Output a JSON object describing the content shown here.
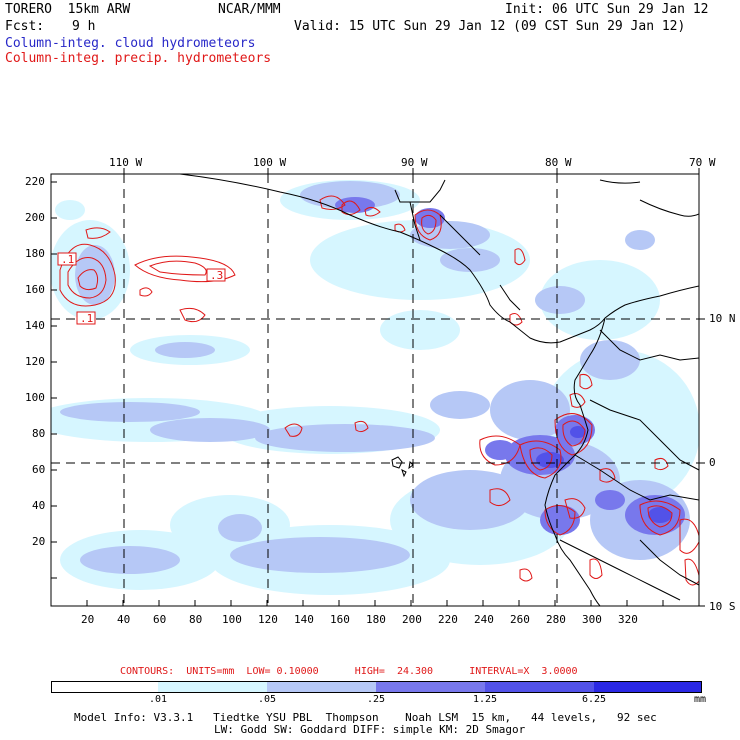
{
  "header": {
    "model": "TORERO  15km ARW",
    "org": "NCAR/MMM",
    "init": "Init: 06 UTC Sun 29 Jan 12",
    "fcst_label": "Fcst:",
    "fcst_value": "9 h",
    "valid": "Valid: 15 UTC Sun 29 Jan 12 (09 CST Sun 29 Jan 12)",
    "field1": "Column-integ. cloud hydrometeors",
    "field2": "Column-integ. precip. hydrometeors"
  },
  "map": {
    "lon_labels": [
      "110 W",
      "100 W",
      "90 W",
      "80 W",
      "70 W"
    ],
    "lat_labels": [
      "10 N",
      "0",
      "10 S"
    ],
    "y_ticks": [
      "220",
      "200",
      "180",
      "160",
      "140",
      "120",
      "100",
      "80",
      "60",
      "40",
      "20"
    ],
    "x_ticks": [
      "20",
      "40",
      "60",
      "80",
      "100",
      "120",
      "140",
      "160",
      "180",
      "200",
      "220",
      "240",
      "260",
      "280",
      "300",
      "320"
    ],
    "contour_labels": [
      ".1",
      ".3",
      ".1"
    ]
  },
  "contours_info": {
    "text": "CONTOURS:  UNITS=mm  LOW= 0.10000      HIGH=  24.300      INTERVAL=X  3.0000"
  },
  "colorbar": {
    "ticks": [
      ".01",
      ".05",
      ".25",
      "1.25",
      "6.25"
    ],
    "units": "mm",
    "colors": [
      "#ffffff",
      "#d6f6ff",
      "#b6c8f6",
      "#9ca4f0",
      "#7878ec",
      "#5252e8",
      "#2a28e4"
    ]
  },
  "footer": {
    "line1": "Model Info: V3.3.1   Tiedtke YSU PBL  Thompson    Noah LSM  15 km,   44 levels,   92 sec",
    "line2": "LW: Godd SW: Goddard DIFF: simple KM: 2D Smagor"
  }
}
